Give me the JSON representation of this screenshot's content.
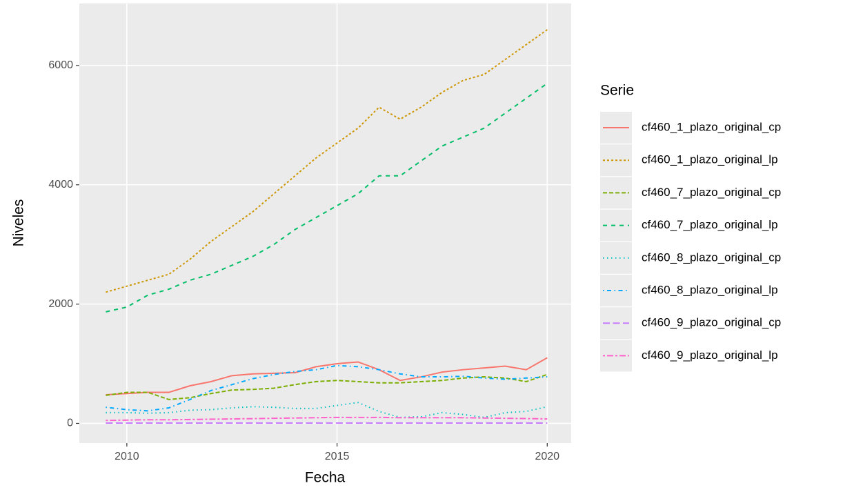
{
  "chart_data": {
    "type": "line",
    "x_label": "Fecha",
    "y_label": "Niveles",
    "legend_title": "Serie",
    "x": [
      2009.5,
      2010,
      2010.5,
      2011,
      2011.5,
      2012,
      2012.5,
      2013,
      2013.5,
      2014,
      2014.5,
      2015,
      2015.5,
      2016,
      2016.5,
      2017,
      2017.5,
      2018,
      2018.5,
      2019,
      2019.5,
      2020
    ],
    "xlim": [
      2008.87,
      2020.57
    ],
    "xticks": [
      2010,
      2015,
      2020
    ],
    "ylim": [
      -330,
      7040
    ],
    "yticks": [
      0,
      2000,
      4000,
      6000
    ],
    "grid": true,
    "legend": "right",
    "series": [
      {
        "name": "cf460_1_plazo_original_cp",
        "color": "#f8766d",
        "dash": "none",
        "values": [
          480,
          500,
          520,
          520,
          630,
          700,
          800,
          830,
          840,
          850,
          950,
          1000,
          1030,
          900,
          720,
          780,
          860,
          900,
          930,
          960,
          900,
          1100
        ]
      },
      {
        "name": "cf460_1_plazo_original_lp",
        "color": "#cd9600",
        "dash": "3,3",
        "values": [
          2200,
          2300,
          2400,
          2500,
          2750,
          3050,
          3300,
          3550,
          3850,
          4150,
          4450,
          4700,
          4950,
          5300,
          5100,
          5300,
          5550,
          5750,
          5850,
          6100,
          6350,
          6600
        ]
      },
      {
        "name": "cf460_7_plazo_original_cp",
        "color": "#7cae00",
        "dash": "6,3",
        "values": [
          470,
          520,
          520,
          400,
          430,
          500,
          560,
          570,
          590,
          650,
          700,
          720,
          700,
          680,
          680,
          700,
          720,
          760,
          780,
          760,
          700,
          820
        ]
      },
      {
        "name": "cf460_7_plazo_original_lp",
        "color": "#00be67",
        "dash": "6,6",
        "values": [
          1870,
          1950,
          2150,
          2250,
          2400,
          2500,
          2650,
          2800,
          3000,
          3250,
          3450,
          3650,
          3850,
          4150,
          4150,
          4400,
          4650,
          4800,
          4950,
          5200,
          5450,
          5700
        ]
      },
      {
        "name": "cf460_8_plazo_original_cp",
        "color": "#00bfc4",
        "dash": "1.5,4.5",
        "values": [
          180,
          180,
          170,
          180,
          220,
          230,
          260,
          280,
          270,
          250,
          250,
          300,
          350,
          200,
          100,
          110,
          180,
          150,
          100,
          180,
          200,
          280
        ]
      },
      {
        "name": "cf460_8_plazo_original_lp",
        "color": "#00a9ff",
        "dash": "1.5,4.5,6,4.5",
        "values": [
          270,
          230,
          210,
          260,
          400,
          550,
          650,
          750,
          820,
          870,
          900,
          970,
          950,
          900,
          830,
          780,
          780,
          790,
          760,
          740,
          760,
          780
        ]
      },
      {
        "name": "cf460_9_plazo_original_cp",
        "color": "#c77cff",
        "dash": "10,4.5",
        "values": [
          5,
          5,
          5,
          5,
          5,
          5,
          5,
          5,
          5,
          5,
          5,
          5,
          5,
          5,
          5,
          5,
          5,
          5,
          5,
          5,
          5,
          5
        ]
      },
      {
        "name": "cf460_9_plazo_original_lp",
        "color": "#ff61cc",
        "dash": "3,3,9,3",
        "values": [
          50,
          55,
          60,
          60,
          65,
          70,
          75,
          80,
          85,
          90,
          95,
          100,
          100,
          100,
          95,
          95,
          95,
          95,
          90,
          85,
          80,
          75
        ]
      }
    ]
  }
}
